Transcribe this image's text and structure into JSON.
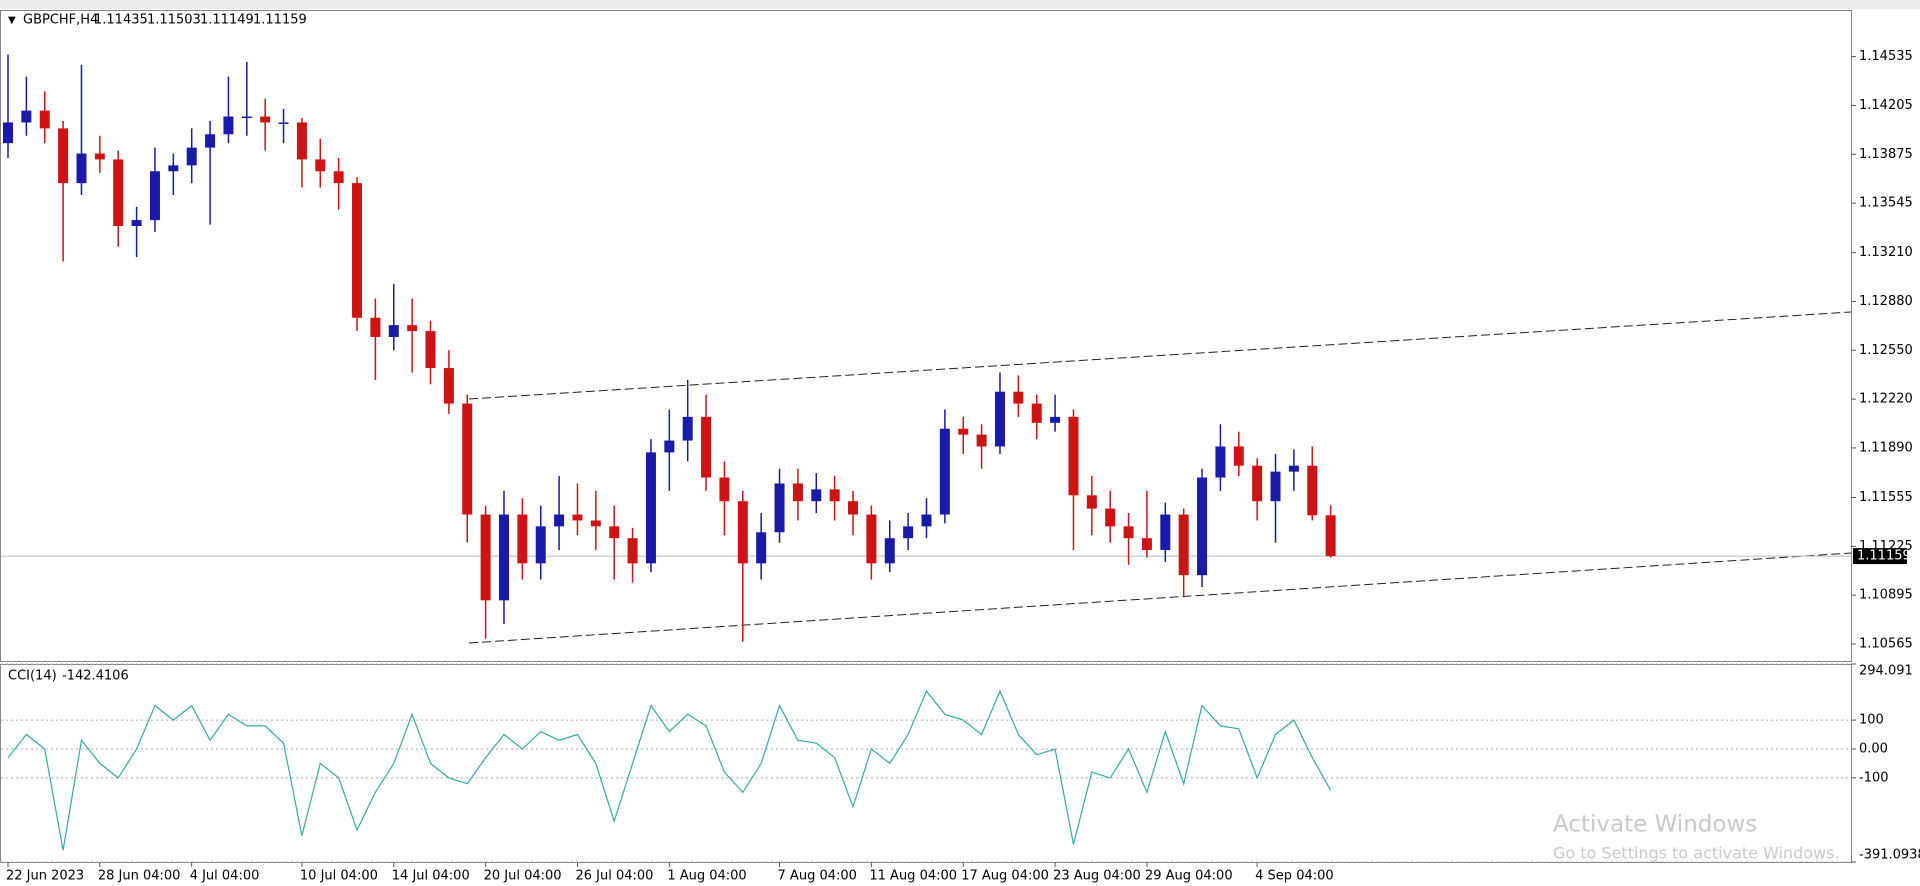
{
  "chart_data": [
    {
      "type": "candlestick",
      "title": "GBPCHF,H4",
      "categories": [
        "22 Jun 2023",
        null,
        null,
        null,
        null,
        "28 Jun 04:00",
        null,
        null,
        null,
        null,
        "4 Jul 04:00",
        null,
        null,
        null,
        null,
        null,
        "10 Jul 04:00",
        null,
        null,
        null,
        null,
        "14 Jul 04:00",
        null,
        null,
        null,
        null,
        "20 Jul 04:00",
        null,
        null,
        null,
        null,
        "26 Jul 04:00",
        null,
        null,
        null,
        null,
        "1 Aug 04:00",
        null,
        null,
        null,
        null,
        null,
        "7 Aug 04:00",
        null,
        null,
        null,
        null,
        "11 Aug 04:00",
        null,
        null,
        null,
        null,
        "17 Aug 04:00",
        null,
        null,
        null,
        null,
        "23 Aug 04:00",
        null,
        null,
        null,
        null,
        "29 Aug 04:00",
        null,
        null,
        null,
        null,
        null,
        "4 Sep 04:00",
        null,
        null,
        null,
        null
      ],
      "open": [
        1.1395,
        1.1409,
        1.1417,
        1.1405,
        1.1368,
        1.1388,
        1.1384,
        1.1339,
        1.1343,
        1.1376,
        1.138,
        1.1392,
        1.1401,
        1.1413,
        1.1413,
        1.1409,
        1.1409,
        1.1384,
        1.1376,
        1.1368,
        1.1277,
        1.1264,
        1.1272,
        1.1268,
        1.1243,
        1.1219,
        1.1144,
        1.1086,
        1.1144,
        1.1111,
        1.1136,
        1.1144,
        1.114,
        1.1136,
        1.1128,
        1.1111,
        1.1186,
        1.1194,
        1.121,
        1.1169,
        1.1153,
        1.1111,
        1.1132,
        1.1165,
        1.1153,
        1.1161,
        1.1153,
        1.1144,
        1.1111,
        1.1128,
        1.1136,
        1.1144,
        1.1202,
        1.1198,
        1.119,
        1.1227,
        1.1219,
        1.1206,
        1.121,
        1.1157,
        1.1148,
        1.1136,
        1.1128,
        1.112,
        1.1144,
        1.1103,
        1.1169,
        1.119,
        1.1177,
        1.1153,
        1.1173,
        1.1177,
        1.11435
      ],
      "high": [
        1.1455,
        1.144,
        1.143,
        1.141,
        1.1448,
        1.14,
        1.139,
        1.1352,
        1.1392,
        1.1388,
        1.1405,
        1.141,
        1.144,
        1.145,
        1.1425,
        1.1418,
        1.1412,
        1.1398,
        1.1385,
        1.1372,
        1.129,
        1.13,
        1.129,
        1.1275,
        1.1255,
        1.1225,
        1.115,
        1.116,
        1.1155,
        1.115,
        1.117,
        1.1165,
        1.116,
        1.115,
        1.1135,
        1.1195,
        1.1215,
        1.1235,
        1.1225,
        1.118,
        1.116,
        1.1145,
        1.1175,
        1.1175,
        1.1172,
        1.117,
        1.116,
        1.115,
        1.114,
        1.1145,
        1.1155,
        1.1215,
        1.121,
        1.1205,
        1.124,
        1.1238,
        1.1225,
        1.1225,
        1.1215,
        1.117,
        1.116,
        1.1145,
        1.116,
        1.1152,
        1.1148,
        1.1175,
        1.1205,
        1.12,
        1.1182,
        1.1185,
        1.1188,
        1.119,
        1.11503
      ],
      "low": [
        1.1385,
        1.14,
        1.1395,
        1.1315,
        1.136,
        1.1375,
        1.1325,
        1.1318,
        1.1335,
        1.136,
        1.1368,
        1.134,
        1.1395,
        1.14,
        1.139,
        1.1395,
        1.1365,
        1.1365,
        1.135,
        1.1268,
        1.1235,
        1.1255,
        1.124,
        1.1232,
        1.1212,
        1.1125,
        1.106,
        1.107,
        1.11,
        1.11,
        1.112,
        1.113,
        1.112,
        1.11,
        1.1098,
        1.1105,
        1.116,
        1.118,
        1.116,
        1.113,
        1.1058,
        1.11,
        1.1125,
        1.114,
        1.1145,
        1.114,
        1.113,
        1.11,
        1.1105,
        1.112,
        1.1128,
        1.1138,
        1.1185,
        1.1175,
        1.1185,
        1.121,
        1.1195,
        1.12,
        1.112,
        1.113,
        1.1125,
        1.111,
        1.1115,
        1.1112,
        1.1088,
        1.1095,
        1.116,
        1.117,
        1.114,
        1.1125,
        1.116,
        1.114,
        1.11149
      ],
      "close": [
        1.1409,
        1.1417,
        1.1405,
        1.1368,
        1.1388,
        1.1384,
        1.1339,
        1.1343,
        1.1376,
        1.138,
        1.1392,
        1.1401,
        1.1413,
        1.1413,
        1.1409,
        1.1409,
        1.1384,
        1.1376,
        1.1368,
        1.1277,
        1.1264,
        1.1272,
        1.1268,
        1.1243,
        1.1219,
        1.1144,
        1.1086,
        1.1144,
        1.1111,
        1.1136,
        1.1144,
        1.114,
        1.1136,
        1.1128,
        1.1111,
        1.1186,
        1.1194,
        1.121,
        1.1169,
        1.1153,
        1.1111,
        1.1132,
        1.1165,
        1.1153,
        1.1161,
        1.1153,
        1.1144,
        1.1111,
        1.1128,
        1.1136,
        1.1144,
        1.1202,
        1.1198,
        1.119,
        1.1227,
        1.1219,
        1.1206,
        1.121,
        1.1157,
        1.1148,
        1.1136,
        1.1128,
        1.112,
        1.1144,
        1.1103,
        1.1169,
        1.119,
        1.1177,
        1.1153,
        1.1173,
        1.1177,
        1.11435,
        1.11159
      ],
      "up_color": "#1a1aa8",
      "down_color": "#cc1414",
      "ylim": [
        1.1045,
        1.1485
      ],
      "yticks": [
        1.14535,
        1.14205,
        1.13875,
        1.13545,
        {
          "value": 1.1321,
          "label": "1.13210"
        },
        {
          "value": 1.1288,
          "label": "1.12880"
        },
        {
          "value": 1.1255,
          "label": "1.12550"
        },
        {
          "value": 1.1222,
          "label": "1.12220"
        },
        {
          "value": 1.1189,
          "label": "1.11890"
        },
        1.11555,
        1.11225,
        1.10895,
        1.10565
      ]
    },
    {
      "type": "line",
      "title": "CCI(14)",
      "color": "#3aa6a6",
      "values": [
        -30,
        50,
        0,
        -350,
        30,
        -50,
        -100,
        0,
        150,
        100,
        150,
        30,
        120,
        80,
        80,
        20,
        -300,
        -50,
        -100,
        -280,
        -150,
        -50,
        120,
        -50,
        -100,
        -120,
        -30,
        50,
        0,
        60,
        30,
        50,
        -50,
        -250,
        -50,
        150,
        60,
        120,
        80,
        -80,
        -150,
        -50,
        150,
        30,
        20,
        -30,
        -200,
        0,
        -50,
        50,
        200,
        120,
        100,
        50,
        200,
        50,
        -20,
        0,
        -330,
        -80,
        -100,
        0,
        -150,
        60,
        -120,
        150,
        80,
        70,
        -100,
        50,
        100,
        -30,
        -142.4106
      ],
      "ylim": [
        -391.0938,
        294.091
      ],
      "yticks": [
        294.091,
        100,
        {
          "value": 0,
          "label": "0.00"
        },
        -100,
        -391.0938
      ]
    }
  ],
  "watermark": {
    "title": "Activate Windows",
    "subtitle": "Go to Settings to activate Windows."
  }
}
